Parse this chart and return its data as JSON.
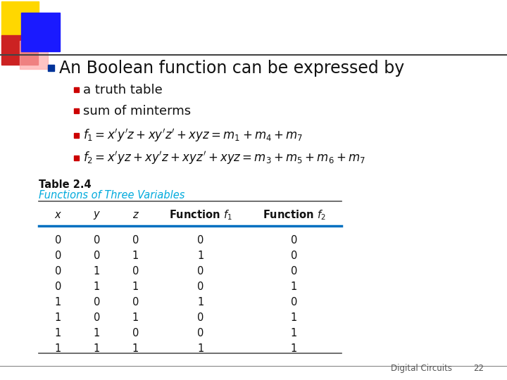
{
  "bg_color": "#ffffff",
  "title_bullet_color": "#003399",
  "sub_bullet_color": "#cc0000",
  "title_text": "An Boolean function can be expressed by",
  "bullets": [
    "a truth table",
    "sum of minterms"
  ],
  "table_title": "Table 2.4",
  "table_subtitle": "Functions of Three Variables",
  "table_subtitle_color": "#00aadd",
  "col_headers": [
    "x",
    "y",
    "z",
    "Function f_1",
    "Function f_2"
  ],
  "table_data": [
    [
      0,
      0,
      0,
      0,
      0
    ],
    [
      0,
      0,
      1,
      1,
      0
    ],
    [
      0,
      1,
      0,
      0,
      0
    ],
    [
      0,
      1,
      1,
      0,
      1
    ],
    [
      1,
      0,
      0,
      1,
      0
    ],
    [
      1,
      0,
      1,
      0,
      1
    ],
    [
      1,
      1,
      0,
      0,
      1
    ],
    [
      1,
      1,
      1,
      1,
      1
    ]
  ],
  "footer_text": "Digital Circuits",
  "footer_page": "22",
  "yellow_color": "#FFD700",
  "blue_sq_color": "#1a1aff",
  "red_color": "#cc2222",
  "pink_color": "#ffaaaa",
  "title_fontsize": 17,
  "bullet_fontsize": 13,
  "eq_fontsize": 12,
  "table_header_fontsize": 10.5,
  "table_data_fontsize": 10.5,
  "table_title_fontsize": 10.5,
  "footer_fontsize": 8.5
}
